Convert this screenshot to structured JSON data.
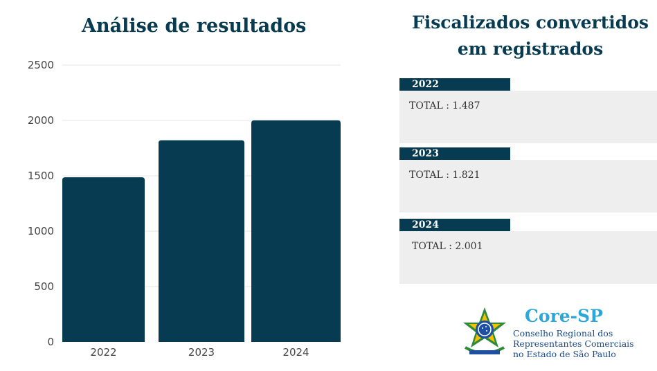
{
  "chart_data": {
    "type": "bar",
    "title": "Análise de resultados",
    "categories": [
      "2022",
      "2023",
      "2024"
    ],
    "values": [
      1487,
      1821,
      2001
    ],
    "yticks": [
      0,
      500,
      1000,
      1500,
      2000,
      2500
    ],
    "ylim": [
      0,
      2500
    ],
    "grid": true,
    "bar_color": "#063b52"
  },
  "panel": {
    "title_line1": "Fiscalizados convertidos",
    "title_line2": "em registrados",
    "entries": [
      {
        "year": "2022",
        "total": "TOTAL : 1.487"
      },
      {
        "year": "2023",
        "total": "TOTAL : 1.821"
      },
      {
        "year": "2024",
        "total": "TOTAL : 2.001"
      }
    ]
  },
  "logo": {
    "name": "Core-SP",
    "line1": "Conselho Regional dos",
    "line2": "Representantes Comerciais",
    "line3": "no Estado de São Paulo",
    "seal_icon": "brazil-coat-of-arms-icon"
  }
}
